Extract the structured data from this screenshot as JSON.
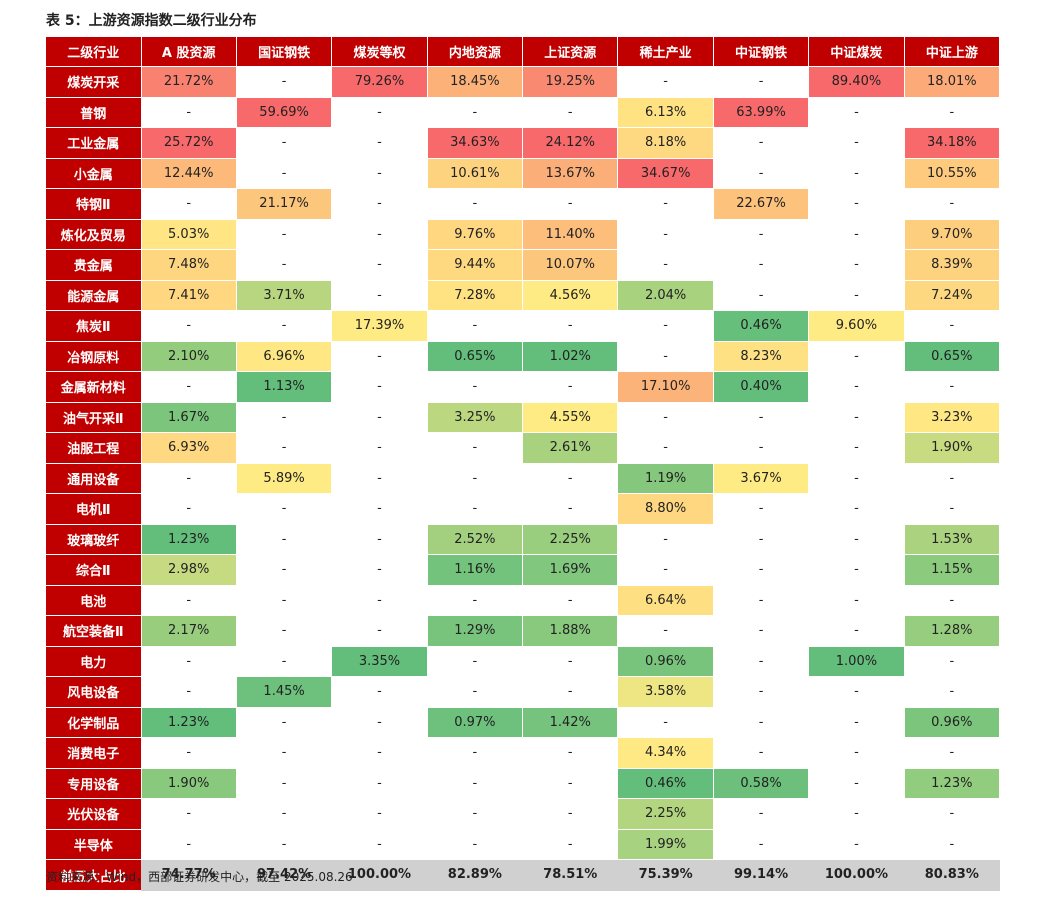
{
  "title": "表 5：上游资源指数二级行业分布",
  "footnote": "资料来源：Wind，西部证券研发中心，截至 2025.08.26",
  "table": {
    "headers": [
      "二级行业",
      "A 股资源",
      "国证钢铁",
      "煤炭等权",
      "内地资源",
      "上证资源",
      "稀土产业",
      "中证钢铁",
      "中证煤炭",
      "中证上游"
    ],
    "rows": [
      {
        "industry": "煤炭开采",
        "cells": [
          "21.72%",
          "-",
          "79.26%",
          "18.45%",
          "19.25%",
          "-",
          "-",
          "89.40%",
          "18.01%"
        ]
      },
      {
        "industry": "普钢",
        "cells": [
          "-",
          "59.69%",
          "-",
          "-",
          "-",
          "6.13%",
          "63.99%",
          "-",
          "-"
        ]
      },
      {
        "industry": "工业金属",
        "cells": [
          "25.72%",
          "-",
          "-",
          "34.63%",
          "24.12%",
          "8.18%",
          "-",
          "-",
          "34.18%"
        ]
      },
      {
        "industry": "小金属",
        "cells": [
          "12.44%",
          "-",
          "-",
          "10.61%",
          "13.67%",
          "34.67%",
          "-",
          "-",
          "10.55%"
        ]
      },
      {
        "industry": "特钢Ⅱ",
        "cells": [
          "-",
          "21.17%",
          "-",
          "-",
          "-",
          "-",
          "22.67%",
          "-",
          "-"
        ]
      },
      {
        "industry": "炼化及贸易",
        "cells": [
          "5.03%",
          "-",
          "-",
          "9.76%",
          "11.40%",
          "-",
          "-",
          "-",
          "9.70%"
        ]
      },
      {
        "industry": "贵金属",
        "cells": [
          "7.48%",
          "-",
          "-",
          "9.44%",
          "10.07%",
          "-",
          "-",
          "-",
          "8.39%"
        ]
      },
      {
        "industry": "能源金属",
        "cells": [
          "7.41%",
          "3.71%",
          "-",
          "7.28%",
          "4.56%",
          "2.04%",
          "-",
          "-",
          "7.24%"
        ]
      },
      {
        "industry": "焦炭Ⅱ",
        "cells": [
          "-",
          "-",
          "17.39%",
          "-",
          "-",
          "-",
          "0.46%",
          "9.60%",
          "-"
        ]
      },
      {
        "industry": "冶钢原料",
        "cells": [
          "2.10%",
          "6.96%",
          "-",
          "0.65%",
          "1.02%",
          "-",
          "8.23%",
          "-",
          "0.65%"
        ]
      },
      {
        "industry": "金属新材料",
        "cells": [
          "-",
          "1.13%",
          "-",
          "-",
          "-",
          "17.10%",
          "0.40%",
          "-",
          "-"
        ]
      },
      {
        "industry": "油气开采Ⅱ",
        "cells": [
          "1.67%",
          "-",
          "-",
          "3.25%",
          "4.55%",
          "-",
          "-",
          "-",
          "3.23%"
        ]
      },
      {
        "industry": "油服工程",
        "cells": [
          "6.93%",
          "-",
          "-",
          "-",
          "2.61%",
          "-",
          "-",
          "-",
          "1.90%"
        ]
      },
      {
        "industry": "通用设备",
        "cells": [
          "-",
          "5.89%",
          "-",
          "-",
          "-",
          "1.19%",
          "3.67%",
          "-",
          "-"
        ]
      },
      {
        "industry": "电机Ⅱ",
        "cells": [
          "-",
          "-",
          "-",
          "-",
          "-",
          "8.80%",
          "-",
          "-",
          "-"
        ]
      },
      {
        "industry": "玻璃玻纤",
        "cells": [
          "1.23%",
          "-",
          "-",
          "2.52%",
          "2.25%",
          "-",
          "-",
          "-",
          "1.53%"
        ]
      },
      {
        "industry": "综合Ⅱ",
        "cells": [
          "2.98%",
          "-",
          "-",
          "1.16%",
          "1.69%",
          "-",
          "-",
          "-",
          "1.15%"
        ]
      },
      {
        "industry": "电池",
        "cells": [
          "-",
          "-",
          "-",
          "-",
          "-",
          "6.64%",
          "-",
          "-",
          "-"
        ]
      },
      {
        "industry": "航空装备Ⅱ",
        "cells": [
          "2.17%",
          "-",
          "-",
          "1.29%",
          "1.88%",
          "-",
          "-",
          "-",
          "1.28%"
        ]
      },
      {
        "industry": "电力",
        "cells": [
          "-",
          "-",
          "3.35%",
          "-",
          "-",
          "0.96%",
          "-",
          "1.00%",
          "-"
        ]
      },
      {
        "industry": "风电设备",
        "cells": [
          "-",
          "1.45%",
          "-",
          "-",
          "-",
          "3.58%",
          "-",
          "-",
          "-"
        ]
      },
      {
        "industry": "化学制品",
        "cells": [
          "1.23%",
          "-",
          "-",
          "0.97%",
          "1.42%",
          "-",
          "-",
          "-",
          "0.96%"
        ]
      },
      {
        "industry": "消费电子",
        "cells": [
          "-",
          "-",
          "-",
          "-",
          "-",
          "4.34%",
          "-",
          "-",
          "-"
        ]
      },
      {
        "industry": "专用设备",
        "cells": [
          "1.90%",
          "-",
          "-",
          "-",
          "-",
          "0.46%",
          "0.58%",
          "-",
          "1.23%"
        ]
      },
      {
        "industry": "光伏设备",
        "cells": [
          "-",
          "-",
          "-",
          "-",
          "-",
          "2.25%",
          "-",
          "-",
          "-"
        ]
      },
      {
        "industry": "半导体",
        "cells": [
          "-",
          "-",
          "-",
          "-",
          "-",
          "1.99%",
          "-",
          "-",
          "-"
        ]
      }
    ],
    "total_row": {
      "industry": "前五大占比",
      "cells": [
        "74.77%",
        "97.42%",
        "100.00%",
        "82.89%",
        "78.51%",
        "75.39%",
        "99.14%",
        "100.00%",
        "80.83%"
      ]
    }
  },
  "colors": {
    "header_bg": "#c00000",
    "header_text": "#ffffff",
    "total_bg": "#d0d0d0",
    "heat_low": "#63be7b",
    "heat_mid": "#ffeb84",
    "heat_high": "#f8696b"
  }
}
